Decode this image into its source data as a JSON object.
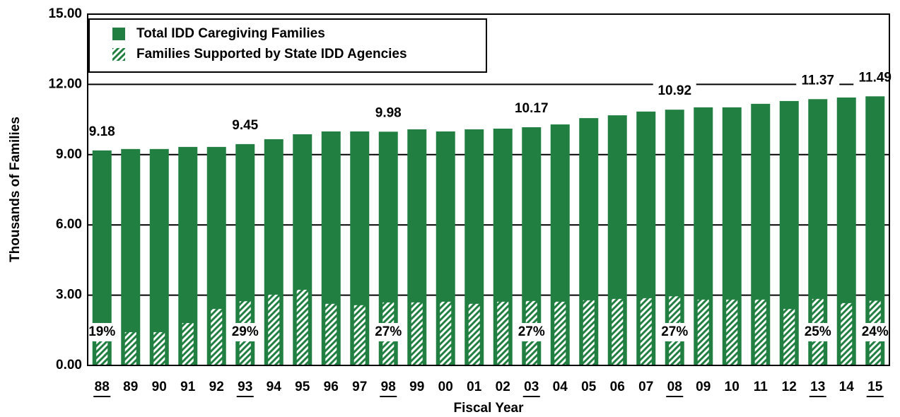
{
  "chart_data": {
    "type": "bar",
    "x_label": "Fiscal Year",
    "y_label": "Thousands of Families",
    "categories": [
      "88",
      "89",
      "90",
      "91",
      "92",
      "93",
      "94",
      "95",
      "96",
      "97",
      "98",
      "99",
      "00",
      "01",
      "02",
      "03",
      "04",
      "05",
      "06",
      "07",
      "08",
      "09",
      "10",
      "11",
      "12",
      "13",
      "14",
      "15"
    ],
    "series": [
      {
        "name": "Total IDD Caregiving Families",
        "color": "#218041",
        "values": [
          9.18,
          9.24,
          9.24,
          9.33,
          9.33,
          9.45,
          9.66,
          9.87,
          9.99,
          9.99,
          9.98,
          10.08,
          9.99,
          10.08,
          10.11,
          10.17,
          10.29,
          10.56,
          10.68,
          10.84,
          10.92,
          11.02,
          11.02,
          11.17,
          11.29,
          11.37,
          11.44,
          11.49
        ],
        "value_labels": [
          "9.18",
          null,
          null,
          null,
          null,
          "9.45",
          null,
          null,
          null,
          null,
          "9.98",
          null,
          null,
          null,
          null,
          "10.17",
          null,
          null,
          null,
          null,
          "10.92",
          null,
          null,
          null,
          null,
          "11.37",
          null,
          "11.49"
        ]
      },
      {
        "name": "Families Supported by State IDD Agencies",
        "color": "#218041",
        "pattern": "hatched",
        "values": [
          1.74,
          1.42,
          1.42,
          1.81,
          2.41,
          2.74,
          3.02,
          3.23,
          2.63,
          2.57,
          2.69,
          2.69,
          2.72,
          2.63,
          2.72,
          2.75,
          2.72,
          2.78,
          2.84,
          2.87,
          2.95,
          2.81,
          2.81,
          2.81,
          2.41,
          2.84,
          2.66,
          2.76
        ],
        "share_labels": [
          "19%",
          null,
          null,
          null,
          null,
          "29%",
          null,
          null,
          null,
          null,
          "27%",
          null,
          null,
          null,
          null,
          "27%",
          null,
          null,
          null,
          null,
          "27%",
          null,
          null,
          null,
          null,
          "25%",
          null,
          "24%"
        ]
      }
    ],
    "ylim": [
      0,
      15
    ],
    "yticks": [
      {
        "value": 0,
        "label": "0.00"
      },
      {
        "value": 3,
        "label": "3.00"
      },
      {
        "value": 6,
        "label": "6.00"
      },
      {
        "value": 9,
        "label": "9.00"
      },
      {
        "value": 12,
        "label": "12.00"
      },
      {
        "value": 15,
        "label": "15.00"
      }
    ],
    "grid": true,
    "legend": "top-left"
  }
}
